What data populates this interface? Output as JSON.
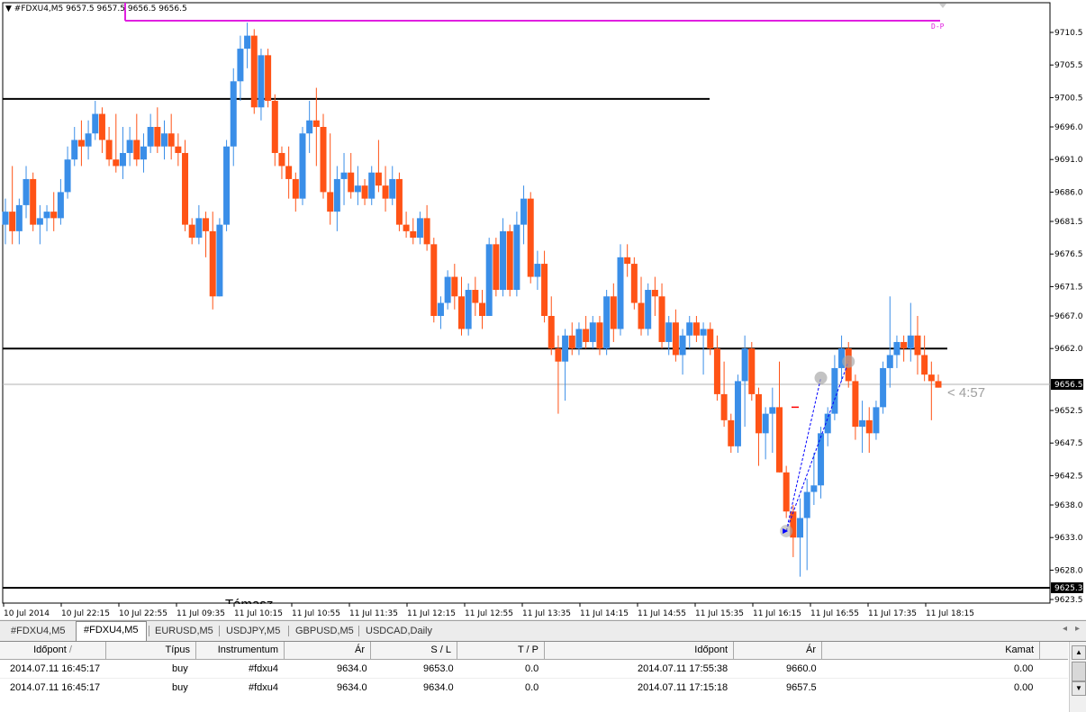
{
  "header": {
    "menu_glyph": "▼",
    "symbol": "#FDXU4,M5",
    "ohlc": "9657.5 9657.5 9656.5 9656.5"
  },
  "chart_data": {
    "type": "candlestick",
    "price_labels": [
      "9710.5",
      "9705.5",
      "9700.5",
      "9696.0",
      "9691.0",
      "9686.0",
      "9681.5",
      "9676.5",
      "9671.5",
      "9667.0",
      "9662.0",
      "9652.5",
      "9647.5",
      "9642.5",
      "9638.0",
      "9633.0",
      "9628.0",
      "9623.5"
    ],
    "price_values": [
      9710.5,
      9705.5,
      9700.5,
      9696.0,
      9691.0,
      9686.0,
      9681.5,
      9676.5,
      9671.5,
      9667.0,
      9662.0,
      9652.5,
      9647.5,
      9642.5,
      9638.0,
      9633.0,
      9628.0,
      9623.5
    ],
    "current_price_label": "9656.5",
    "current_price": 9656.5,
    "support_price_label": "9625.3",
    "support_price": 9625.3,
    "time_labels": [
      "10 Jul 2014",
      "10 Jul 22:15",
      "10 Jul 22:55",
      "11 Jul 09:35",
      "11 Jul 10:15",
      "11 Jul 10:55",
      "11 Jul 11:35",
      "11 Jul 12:15",
      "11 Jul 12:55",
      "11 Jul 13:35",
      "11 Jul 14:15",
      "11 Jul 14:55",
      "11 Jul 15:35",
      "11 Jul 16:15",
      "11 Jul 16:55",
      "11 Jul 17:35",
      "11 Jul 18:15"
    ],
    "horizontal_lines": [
      9700.3,
      9662.0,
      9625.3
    ],
    "pivot_label": "D-P",
    "pivot_price": 9712.3,
    "countdown": "< 4:57",
    "support_text": "Támasz",
    "ohlc": [
      [
        9681,
        9685,
        9678,
        9683
      ],
      [
        9683,
        9690,
        9678,
        9680
      ],
      [
        9680,
        9685,
        9678,
        9684
      ],
      [
        9684,
        9690,
        9682,
        9688
      ],
      [
        9688,
        9689,
        9680,
        9681
      ],
      [
        9681,
        9684,
        9678,
        9682
      ],
      [
        9682,
        9684,
        9680,
        9683
      ],
      [
        9683,
        9686,
        9680,
        9682
      ],
      [
        9682,
        9688,
        9681,
        9686
      ],
      [
        9686,
        9693,
        9685,
        9691
      ],
      [
        9691,
        9696,
        9690,
        9694
      ],
      [
        9694,
        9697,
        9690,
        9693
      ],
      [
        9693,
        9697,
        9691,
        9695
      ],
      [
        9695,
        9700,
        9694,
        9698
      ],
      [
        9698,
        9699,
        9692,
        9694
      ],
      [
        9694,
        9696,
        9690,
        9691
      ],
      [
        9691,
        9698,
        9689,
        9690
      ],
      [
        9690,
        9696,
        9688,
        9692
      ],
      [
        9692,
        9696,
        9690,
        9694
      ],
      [
        9694,
        9698,
        9690,
        9691
      ],
      [
        9691,
        9695,
        9689,
        9693
      ],
      [
        9693,
        9698,
        9692,
        9696
      ],
      [
        9696,
        9699,
        9692,
        9693
      ],
      [
        9693,
        9697,
        9691,
        9695
      ],
      [
        9695,
        9698,
        9691,
        9693
      ],
      [
        9693,
        9695,
        9690,
        9692
      ],
      [
        9692,
        9694,
        9680,
        9681
      ],
      [
        9681,
        9682,
        9678,
        9679
      ],
      [
        9679,
        9684,
        9678,
        9682
      ],
      [
        9682,
        9683,
        9676,
        9680
      ],
      [
        9680,
        9683,
        9668,
        9670
      ],
      [
        9670,
        9682,
        9670,
        9681
      ],
      [
        9681,
        9694,
        9680,
        9693
      ],
      [
        9693,
        9705,
        9690,
        9703
      ],
      [
        9703,
        9710,
        9700,
        9708
      ],
      [
        9708,
        9712,
        9705,
        9710
      ],
      [
        9710,
        9711,
        9698,
        9699
      ],
      [
        9699,
        9708,
        9697,
        9707
      ],
      [
        9707,
        9708,
        9699,
        9700
      ],
      [
        9700,
        9701,
        9690,
        9692
      ],
      [
        9692,
        9693,
        9688,
        9690
      ],
      [
        9690,
        9693,
        9685,
        9688
      ],
      [
        9688,
        9689,
        9683,
        9685
      ],
      [
        9685,
        9696,
        9684,
        9695
      ],
      [
        9695,
        9700,
        9692,
        9697
      ],
      [
        9697,
        9702,
        9690,
        9696
      ],
      [
        9696,
        9698,
        9685,
        9686
      ],
      [
        9686,
        9695,
        9681,
        9683
      ],
      [
        9683,
        9690,
        9680,
        9688
      ],
      [
        9688,
        9692,
        9684,
        9689
      ],
      [
        9689,
        9692,
        9685,
        9686
      ],
      [
        9686,
        9690,
        9684,
        9687
      ],
      [
        9687,
        9688,
        9684,
        9685
      ],
      [
        9685,
        9690,
        9684,
        9689
      ],
      [
        9689,
        9694,
        9686,
        9687
      ],
      [
        9687,
        9690,
        9683,
        9685
      ],
      [
        9685,
        9690,
        9684,
        9688
      ],
      [
        9688,
        9689,
        9680,
        9681
      ],
      [
        9681,
        9683,
        9679,
        9680
      ],
      [
        9680,
        9682,
        9678,
        9679
      ],
      [
        9679,
        9683,
        9678,
        9682
      ],
      [
        9682,
        9684,
        9677,
        9678
      ],
      [
        9678,
        9679,
        9666,
        9667
      ],
      [
        9667,
        9670,
        9665,
        9669
      ],
      [
        9669,
        9674,
        9668,
        9673
      ],
      [
        9673,
        9675,
        9668,
        9670
      ],
      [
        9670,
        9673,
        9664,
        9665
      ],
      [
        9665,
        9672,
        9664,
        9671
      ],
      [
        9671,
        9673,
        9667,
        9669
      ],
      [
        9669,
        9671,
        9665,
        9667
      ],
      [
        9667,
        9679,
        9667,
        9678
      ],
      [
        9678,
        9679,
        9670,
        9671
      ],
      [
        9671,
        9682,
        9670,
        9680
      ],
      [
        9680,
        9681,
        9670,
        9671
      ],
      [
        9671,
        9683,
        9670,
        9681
      ],
      [
        9681,
        9687,
        9678,
        9685
      ],
      [
        9685,
        9686,
        9672,
        9673
      ],
      [
        9673,
        9677,
        9671,
        9675
      ],
      [
        9675,
        9677,
        9666,
        9667
      ],
      [
        9667,
        9670,
        9661,
        9662
      ],
      [
        9662,
        9664,
        9652,
        9660
      ],
      [
        9660,
        9665,
        9654,
        9664
      ],
      [
        9664,
        9666,
        9661,
        9662
      ],
      [
        9662,
        9666,
        9661,
        9665
      ],
      [
        9665,
        9667,
        9662,
        9663
      ],
      [
        9663,
        9667,
        9662,
        9666
      ],
      [
        9666,
        9667,
        9661,
        9662
      ],
      [
        9662,
        9671,
        9661,
        9670
      ],
      [
        9670,
        9672,
        9663,
        9665
      ],
      [
        9665,
        9678,
        9664,
        9676
      ],
      [
        9676,
        9678,
        9673,
        9675
      ],
      [
        9675,
        9676,
        9668,
        9669
      ],
      [
        9669,
        9673,
        9664,
        9665
      ],
      [
        9665,
        9672,
        9664,
        9671
      ],
      [
        9671,
        9673,
        9667,
        9670
      ],
      [
        9670,
        9672,
        9662,
        9663
      ],
      [
        9663,
        9667,
        9661,
        9666
      ],
      [
        9666,
        9668,
        9660,
        9661
      ],
      [
        9661,
        9665,
        9658,
        9664
      ],
      [
        9664,
        9667,
        9662,
        9666
      ],
      [
        9666,
        9667,
        9663,
        9664
      ],
      [
        9664,
        9666,
        9658,
        9665
      ],
      [
        9665,
        9666,
        9661,
        9662
      ],
      [
        9662,
        9664,
        9654,
        9655
      ],
      [
        9655,
        9660,
        9650,
        9651
      ],
      [
        9651,
        9652,
        9646,
        9647
      ],
      [
        9647,
        9658,
        9646,
        9657
      ],
      [
        9657,
        9664,
        9650,
        9662
      ],
      [
        9662,
        9663,
        9654,
        9655
      ],
      [
        9655,
        9656,
        9644,
        9649
      ],
      [
        9649,
        9653,
        9645,
        9652
      ],
      [
        9652,
        9656,
        9646,
        9653
      ],
      [
        9653,
        9660,
        9643,
        9643
      ],
      [
        9643,
        9644,
        9636,
        9637
      ],
      [
        9637,
        9638,
        9630,
        9633
      ],
      [
        9633,
        9639,
        9627,
        9636
      ],
      [
        9636,
        9642,
        9628,
        9640
      ],
      [
        9640,
        9646,
        9638,
        9641
      ],
      [
        9641,
        9650,
        9639,
        9649
      ],
      [
        9649,
        9653,
        9647,
        9652
      ],
      [
        9652,
        9661,
        9651,
        9659
      ],
      [
        9659,
        9664,
        9657,
        9662
      ],
      [
        9662,
        9663,
        9656,
        9657
      ],
      [
        9657,
        9658,
        9648,
        9650
      ],
      [
        9650,
        9654,
        9646,
        9651
      ],
      [
        9651,
        9653,
        9646,
        9649
      ],
      [
        9649,
        9654,
        9648,
        9653
      ],
      [
        9653,
        9660,
        9652,
        9659
      ],
      [
        9659,
        9670,
        9656,
        9661
      ],
      [
        9661,
        9664,
        9659,
        9663
      ],
      [
        9663,
        9664,
        9660,
        9662
      ],
      [
        9662,
        9669,
        9660,
        9664
      ],
      [
        9664,
        9667,
        9658,
        9661
      ],
      [
        9661,
        9664,
        9657,
        9658
      ],
      [
        9658,
        9660,
        9651,
        9657
      ],
      [
        9657,
        9658,
        9656,
        9656
      ]
    ]
  },
  "tabs": [
    "#FDXU4,M5",
    "#FDXU4,M5",
    "EURUSD,M5",
    "USDJPY,M5",
    "GBPUSD,M5",
    "USDCAD,Daily"
  ],
  "active_tab": 1,
  "scroll_glyphs": {
    "left": "◂",
    "right": "▸",
    "up": "▲",
    "down": "▼"
  },
  "grid": {
    "columns": [
      "Időpont",
      "Típus",
      "Instrumentum",
      "Ár",
      "S / L",
      "T / P",
      "Időpont",
      "Ár",
      "Kamat"
    ],
    "sort_glyph": "/",
    "rows": [
      [
        "2014.07.11 16:45:17",
        "buy",
        "#fdxu4",
        "9634.0",
        "9653.0",
        "0.0",
        "2014.07.11 17:55:38",
        "9660.0",
        "0.00"
      ],
      [
        "2014.07.11 16:45:17",
        "buy",
        "#fdxu4",
        "9634.0",
        "9634.0",
        "0.0",
        "2014.07.11 17:15:18",
        "9657.5",
        "0.00"
      ]
    ]
  },
  "colors": {
    "bull": "#3a8ee8",
    "bear": "#ff5316",
    "pivot": "#e020e0",
    "level": "#000000",
    "current": "#b0b0b0"
  }
}
